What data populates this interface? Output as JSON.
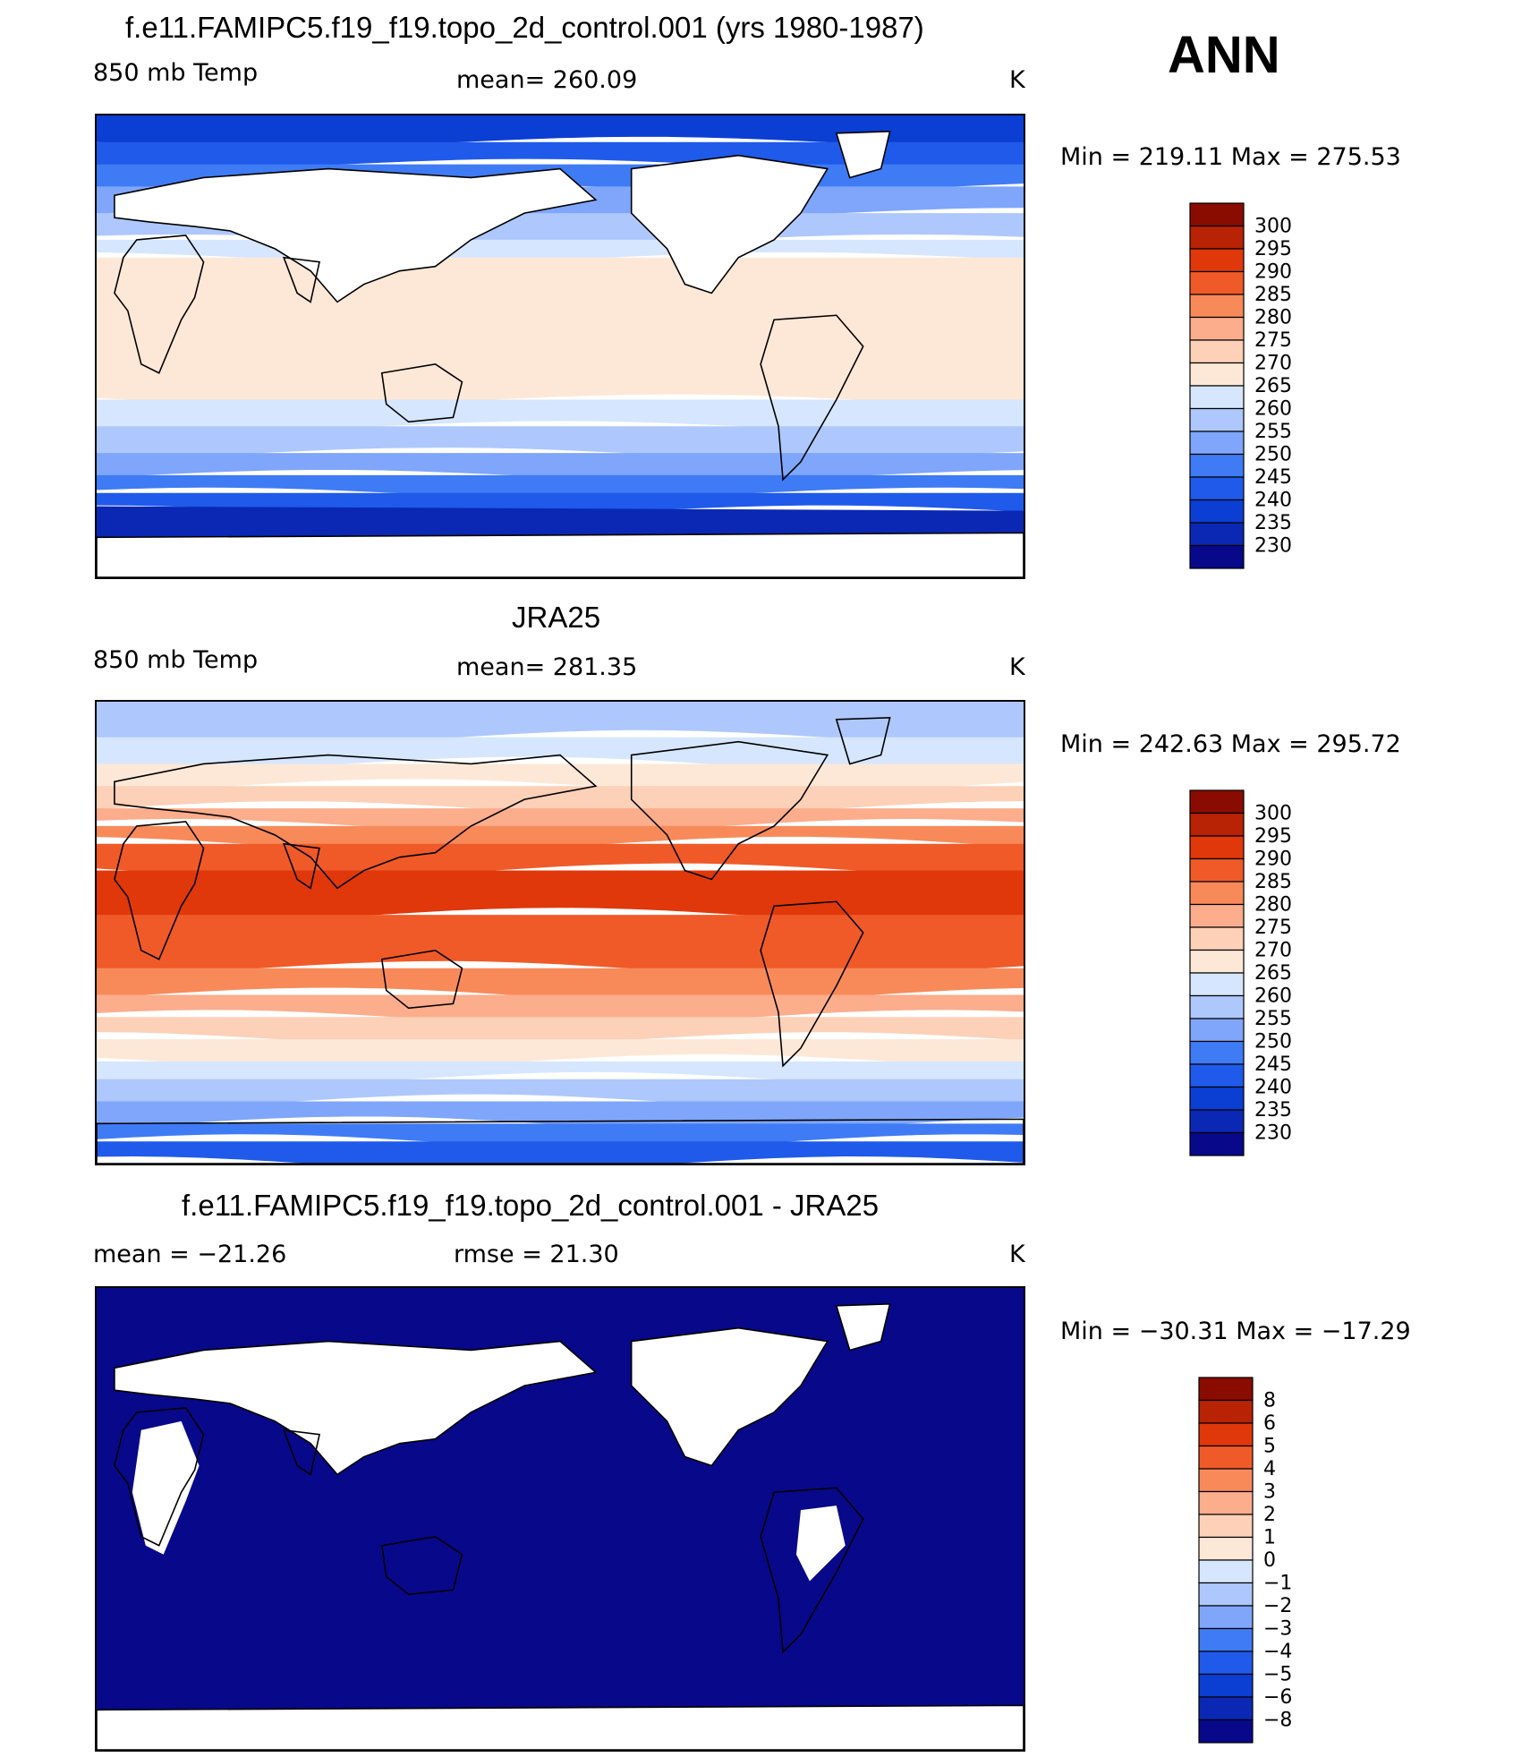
{
  "season": "ANN",
  "panels": [
    {
      "id": "model",
      "title": "f.e11.FAMIPC5.f19_f19.topo_2d_control.001 (yrs 1980-1987)",
      "left_label": "850 mb Temp",
      "center_label": "mean=  260.09",
      "units": "K",
      "minmax": "Min  =  219.11  Max  =  275.53",
      "field": "model",
      "colorbar_labels": [
        "300",
        "295",
        "290",
        "285",
        "280",
        "275",
        "270",
        "265",
        "260",
        "255",
        "250",
        "245",
        "240",
        "235",
        "230"
      ]
    },
    {
      "id": "obs",
      "title": "JRA25",
      "left_label": "850 mb Temp",
      "center_label": "mean=  281.35",
      "units": "K",
      "minmax": "Min  =  242.63  Max  =  295.72",
      "field": "obs",
      "colorbar_labels": [
        "300",
        "295",
        "290",
        "285",
        "280",
        "275",
        "270",
        "265",
        "260",
        "255",
        "250",
        "245",
        "240",
        "235",
        "230"
      ]
    },
    {
      "id": "diff",
      "title": "f.e11.FAMIPC5.f19_f19.topo_2d_control.001 - JRA25",
      "left_label": "mean  =  −21.26",
      "center_label": "rmse  =    21.30",
      "units": "K",
      "minmax": "Min  =  −30.31  Max  =  −17.29",
      "field": "diff",
      "colorbar_labels": [
        "8",
        "6",
        "5",
        "4",
        "3",
        "2",
        "1",
        "0",
        "−1",
        "−2",
        "−3",
        "−4",
        "−5",
        "−6",
        "−8"
      ]
    }
  ],
  "palette": [
    "#08088a",
    "#0a28b4",
    "#0b3ed2",
    "#1f5aea",
    "#3f7bf4",
    "#7fa6fb",
    "#aec8fd",
    "#d6e6fe",
    "#fde8d8",
    "#fdd0b8",
    "#fbad8c",
    "#f88a5a",
    "#f05a28",
    "#e0380b",
    "#b82205",
    "#8a0b00"
  ],
  "land_mask_color": "#ffffff",
  "coast_color": "#000000"
}
